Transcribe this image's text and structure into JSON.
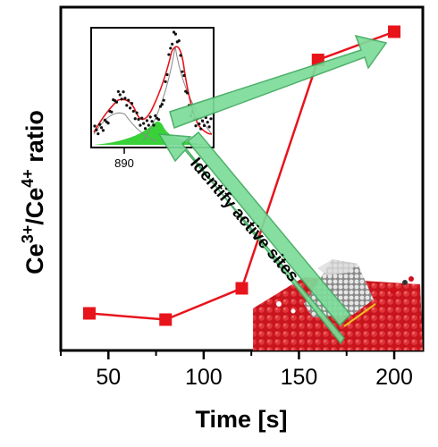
{
  "chart_data": {
    "type": "line",
    "xlabel": "Time [s]",
    "ylabel": {
      "base1": "Ce",
      "sup1": "3+",
      "sep": "/Ce",
      "sup2": "4+",
      "rest": " ratio"
    },
    "xlim": [
      25,
      215
    ],
    "ylim": [
      0,
      1
    ],
    "x_ticks": [
      50,
      100,
      150,
      200
    ],
    "x_tick_labels": [
      "50",
      "100",
      "150",
      "200"
    ],
    "grid": false,
    "y_tick_labels_shown": false,
    "series": [
      {
        "color": "#e8141c",
        "x": [
          40,
          80,
          120,
          160,
          200
        ],
        "y": [
          0.07,
          0.05,
          0.15,
          0.88,
          0.97
        ]
      }
    ],
    "annotation": "Identify active sites",
    "inset": {
      "type": "spectrum",
      "x_tick_label": "890",
      "fit_color": "#e8141c",
      "component_color": "#22cc22",
      "data_color": "#111111"
    }
  },
  "colors": {
    "arrow_fill": "#7ddc9a",
    "arrow_edge": "#3faa5e",
    "surface_red": "#c8141c",
    "cluster_gray": "#b9b9b9"
  }
}
